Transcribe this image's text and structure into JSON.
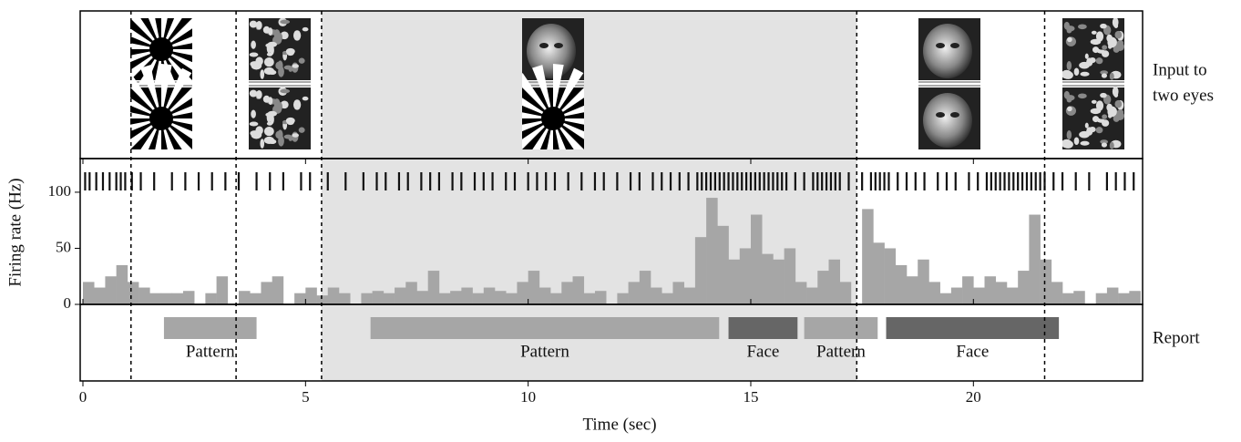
{
  "chart_data": {
    "type": "histogram",
    "xlabel": "Time (sec)",
    "ylabel": "Firing rate (Hz)",
    "xlim": [
      0,
      23.8
    ],
    "xticks": [
      0,
      5,
      10,
      15,
      20
    ],
    "ylim": [
      0,
      130
    ],
    "yticks": [
      0,
      50,
      100
    ],
    "color": "#a6a6a6",
    "bins": [
      0,
      0.25,
      0.5,
      0.75,
      1,
      1.25,
      1.5,
      1.75,
      2,
      2.25,
      2.5,
      2.75,
      3,
      3.25,
      3.5,
      3.75,
      4,
      4.25,
      4.5,
      4.75,
      5,
      5.25,
      5.5,
      5.75,
      6,
      6.25,
      6.5,
      6.75,
      7,
      7.25,
      7.5,
      7.75,
      8,
      8.25,
      8.5,
      8.75,
      9,
      9.25,
      9.5,
      9.75,
      10,
      10.25,
      10.5,
      10.75,
      11,
      11.25,
      11.5,
      11.75,
      12,
      12.25,
      12.5,
      12.75,
      13,
      13.25,
      13.5,
      13.75,
      14,
      14.25,
      14.5,
      14.75,
      15,
      15.25,
      15.5,
      15.75,
      16,
      16.25,
      16.5,
      16.75,
      17,
      17.25,
      17.5,
      17.75,
      18,
      18.25,
      18.5,
      18.75,
      19,
      19.25,
      19.5,
      19.75,
      20,
      20.25,
      20.5,
      20.75,
      21,
      21.25,
      21.5,
      21.75,
      22,
      22.25,
      22.5,
      22.75,
      23,
      23.25,
      23.5,
      23.75
    ],
    "values": [
      20,
      15,
      25,
      35,
      20,
      15,
      10,
      10,
      10,
      12,
      0,
      10,
      25,
      0,
      12,
      10,
      20,
      25,
      0,
      10,
      15,
      8,
      15,
      10,
      0,
      10,
      12,
      10,
      15,
      20,
      12,
      30,
      10,
      12,
      15,
      10,
      15,
      12,
      10,
      20,
      30,
      15,
      10,
      20,
      25,
      10,
      12,
      0,
      10,
      20,
      30,
      15,
      10,
      20,
      15,
      60,
      95,
      70,
      40,
      50,
      80,
      45,
      40,
      50,
      20,
      15,
      30,
      40,
      20,
      0,
      85,
      55,
      50,
      35,
      25,
      40,
      20,
      10,
      15,
      25,
      15,
      25,
      20,
      15,
      30,
      80,
      40,
      20,
      10,
      12,
      0,
      10,
      15,
      10,
      12
    ],
    "spike_times": [
      0.05,
      0.15,
      0.3,
      0.45,
      0.6,
      0.75,
      0.85,
      0.95,
      1.1,
      1.3,
      1.6,
      2.0,
      2.3,
      2.6,
      2.9,
      3.2,
      3.5,
      3.9,
      4.2,
      4.5,
      4.9,
      5.1,
      5.5,
      5.9,
      6.3,
      6.6,
      6.8,
      7.1,
      7.3,
      7.6,
      7.8,
      8.0,
      8.3,
      8.5,
      8.8,
      9.0,
      9.2,
      9.5,
      9.7,
      10.0,
      10.2,
      10.4,
      10.6,
      10.9,
      11.2,
      11.5,
      11.7,
      12.0,
      12.3,
      12.5,
      12.8,
      13.0,
      13.2,
      13.4,
      13.6,
      13.8,
      13.9,
      14.0,
      14.1,
      14.2,
      14.3,
      14.4,
      14.5,
      14.6,
      14.7,
      14.8,
      14.9,
      15.0,
      15.1,
      15.2,
      15.3,
      15.4,
      15.5,
      15.6,
      15.7,
      15.8,
      16.0,
      16.2,
      16.4,
      16.5,
      16.6,
      16.7,
      16.8,
      16.9,
      17.0,
      17.2,
      17.5,
      17.7,
      17.8,
      17.9,
      18.0,
      18.1,
      18.3,
      18.5,
      18.7,
      18.9,
      19.2,
      19.4,
      19.6,
      19.9,
      20.1,
      20.3,
      20.4,
      20.5,
      20.6,
      20.7,
      20.8,
      20.9,
      21.0,
      21.1,
      21.2,
      21.3,
      21.4,
      21.5,
      21.6,
      21.8,
      22.0,
      22.3,
      22.6,
      23.0,
      23.2,
      23.4,
      23.6
    ],
    "stimulus_switches": [
      1.08,
      3.44,
      5.36,
      17.38,
      21.6
    ],
    "shaded_span": [
      5.36,
      17.38
    ],
    "input_label": [
      "Input to",
      "two eyes"
    ],
    "report_label": "Report",
    "report_periods": [
      {
        "label": "Pattern",
        "start": 1.82,
        "end": 3.9,
        "color": "#a6a6a6"
      },
      {
        "label": "Pattern",
        "start": 6.46,
        "end": 14.29,
        "color": "#a6a6a6"
      },
      {
        "label": "Face",
        "start": 14.5,
        "end": 16.05,
        "color": "#666666"
      },
      {
        "label": "Pattern",
        "start": 16.2,
        "end": 17.85,
        "color": "#a6a6a6"
      },
      {
        "label": "Face",
        "start": 18.04,
        "end": 21.92,
        "color": "#666666"
      }
    ]
  }
}
